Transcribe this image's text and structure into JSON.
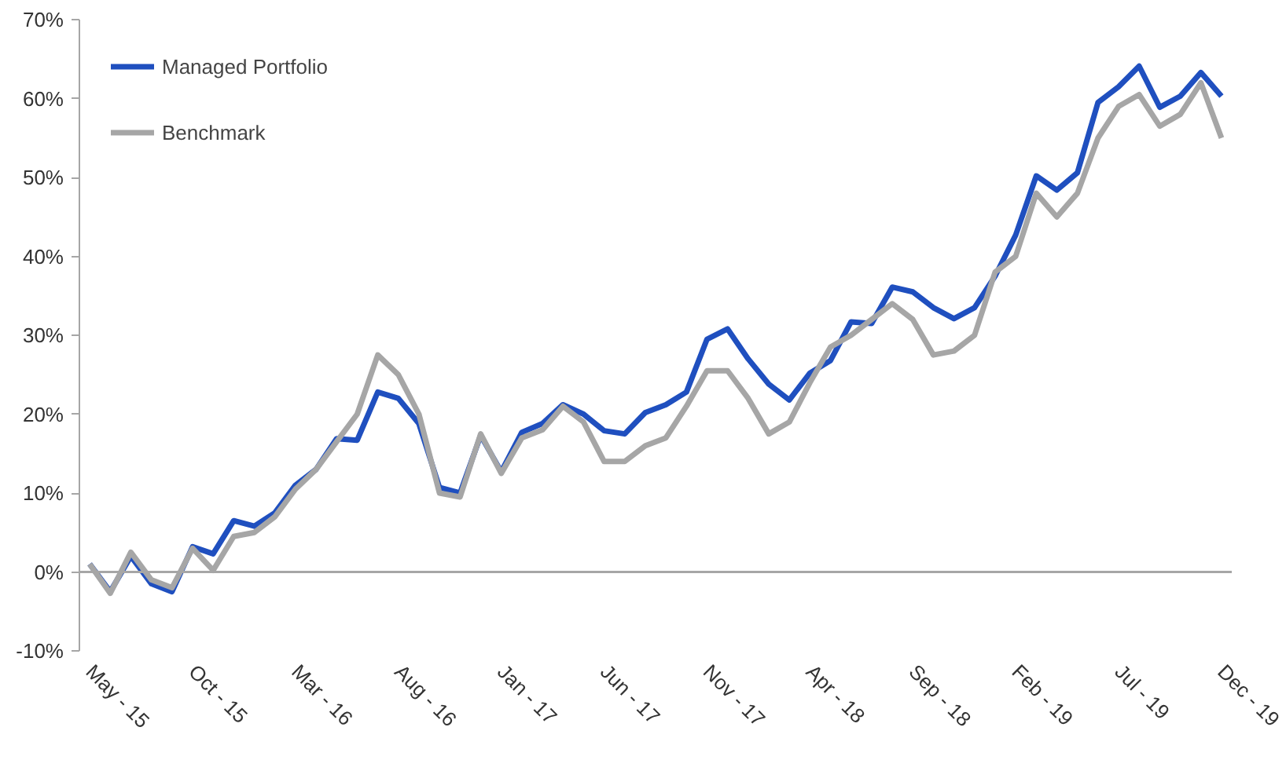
{
  "chart_data": {
    "type": "line",
    "categories": [
      "May - 15",
      null,
      null,
      null,
      null,
      "Oct - 15",
      null,
      null,
      null,
      null,
      "Mar - 16",
      null,
      null,
      null,
      null,
      "Aug - 16",
      null,
      null,
      null,
      null,
      "Jan - 17",
      null,
      null,
      null,
      null,
      "Jun - 17",
      null,
      null,
      null,
      null,
      "Nov - 17",
      null,
      null,
      null,
      null,
      "Apr - 18",
      null,
      null,
      null,
      null,
      "Sep - 18",
      null,
      null,
      null,
      null,
      "Feb - 19",
      null,
      null,
      null,
      null,
      "Jul - 19",
      null,
      null,
      null,
      null,
      "Dec - 19"
    ],
    "series": [
      {
        "name": "Managed Portfolio",
        "color": "#1f4fbf",
        "values": [
          1,
          -2.5,
          2,
          -1.5,
          -2.5,
          3.2,
          2.3,
          6.5,
          5.8,
          7.5,
          11,
          13,
          16.9,
          16.7,
          22.8,
          22,
          18.8,
          10.7,
          10,
          17.3,
          12.7,
          17.7,
          18.8,
          21.2,
          20,
          17.9,
          17.5,
          20.2,
          21.2,
          22.8,
          29.5,
          30.8,
          27,
          23.8,
          21.8,
          25.2,
          26.8,
          31.7,
          31.5,
          36.1,
          35.5,
          33.5,
          32.1,
          33.5,
          37.5,
          42.7,
          50.2,
          48.4,
          50.6,
          59.5,
          61.5,
          64.1,
          58.9,
          60.3,
          63.3,
          60.3
        ]
      },
      {
        "name": "Benchmark",
        "color": "#a6a6a6",
        "values": [
          1,
          -2.7,
          2.5,
          -1,
          -2,
          3,
          0.2,
          4.5,
          5,
          7,
          10.5,
          13,
          16.5,
          20,
          27.5,
          25,
          20,
          10,
          9.5,
          17.5,
          12.5,
          17,
          18,
          21,
          19,
          14,
          14,
          16,
          17,
          21,
          25.5,
          25.5,
          22,
          17.5,
          19,
          24,
          28.5,
          30,
          32,
          34,
          32,
          27.5,
          28,
          30,
          38,
          40,
          48,
          45,
          48,
          55,
          59,
          60.5,
          56.5,
          58,
          62,
          55
        ]
      }
    ],
    "ylim": [
      -10,
      70
    ],
    "yticks": [
      {
        "value": -10,
        "label": "-10%"
      },
      {
        "value": 0,
        "label": "0%"
      },
      {
        "value": 10,
        "label": "10%"
      },
      {
        "value": 20,
        "label": "20%"
      },
      {
        "value": 30,
        "label": "30%"
      },
      {
        "value": 40,
        "label": "40%"
      },
      {
        "value": 50,
        "label": "50%"
      },
      {
        "value": 60,
        "label": "60%"
      },
      {
        "value": 70,
        "label": "70%"
      }
    ],
    "ref_lines": [
      {
        "axis": "y",
        "value": 0,
        "color": "#a6a6a6",
        "line_style": "solid"
      }
    ],
    "grid": false,
    "legend": "top left",
    "line_style": "solid",
    "marker": "none"
  }
}
